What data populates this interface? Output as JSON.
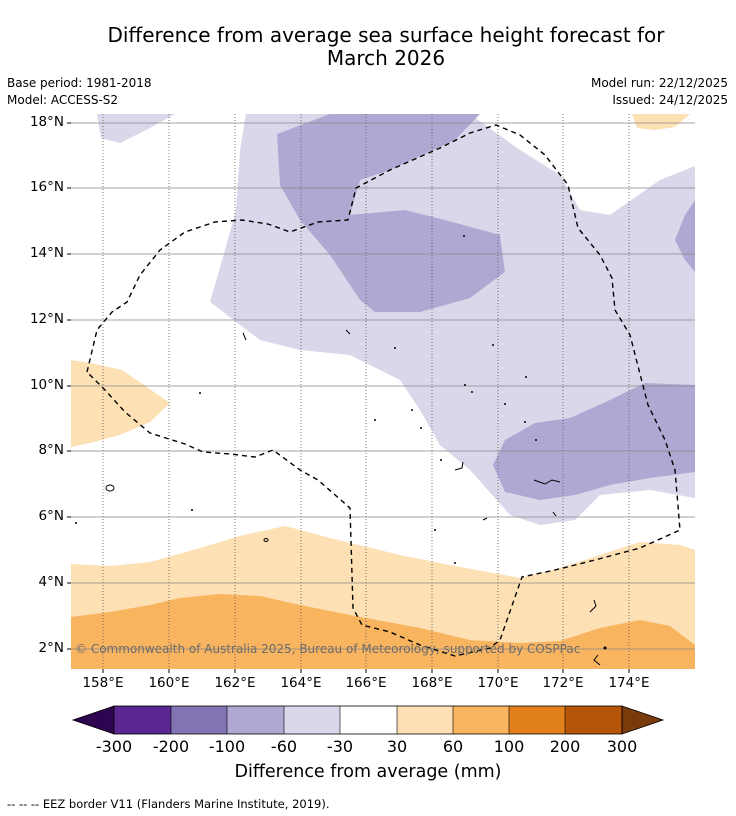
{
  "title_line1": "Difference from average sea surface height forecast for",
  "title_line2": "March 2026",
  "meta": {
    "base_period": "Base period: 1981-2018",
    "model": "Model: ACCESS-S2",
    "model_run": "Model run: 22/12/2025",
    "issued": "Issued: 24/12/2025"
  },
  "map": {
    "lat_labels": [
      "18°N",
      "16°N",
      "14°N",
      "12°N",
      "10°N",
      "8°N",
      "6°N",
      "4°N",
      "2°N"
    ],
    "lon_labels": [
      "158°E",
      "160°E",
      "162°E",
      "164°E",
      "166°E",
      "168°E",
      "170°E",
      "172°E",
      "174°E"
    ],
    "copyright": "© Commonwealth of Australia 2025, Bureau of Meteorology, supported by COSPPac"
  },
  "colorbar": {
    "title": "Difference from average (mm)",
    "ticks": [
      "-300",
      "-200",
      "-100",
      "-60",
      "-30",
      "30",
      "60",
      "100",
      "200",
      "300"
    ],
    "colors": [
      "#2d0450",
      "#5a2690",
      "#8274b4",
      "#b0a8d2",
      "#d8d8ea",
      "#ffffff",
      "#fde0b4",
      "#f9b460",
      "#e2801a",
      "#b55508",
      "#7a3a0a"
    ]
  },
  "footer": "--  --  -- EEZ border V11 (Flanders Marine Institute, 2019)."
}
